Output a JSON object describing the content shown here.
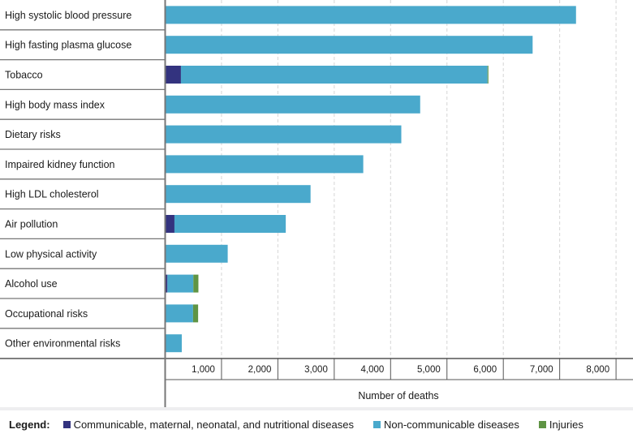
{
  "chart_data": {
    "type": "bar",
    "orientation": "horizontal",
    "stacked": true,
    "title": "",
    "xlabel": "Number of deaths",
    "ylabel": "",
    "xlim": [
      0,
      8300
    ],
    "xticks": [
      1000,
      2000,
      3000,
      4000,
      5000,
      6000,
      7000,
      8000
    ],
    "xtick_labels": [
      "1,000",
      "2,000",
      "3,000",
      "4,000",
      "5,000",
      "6,000",
      "7,000",
      "8,000"
    ],
    "grid": "vertical dashed",
    "categories": [
      "High systolic blood pressure",
      "High fasting plasma glucose",
      "Tobacco",
      "High body mass index",
      "Dietary risks",
      "Impaired kidney function",
      "High LDL cholesterol",
      "Air pollution",
      "Low physical activity",
      "Alcohol use",
      "Occupational risks",
      "Other environmental risks"
    ],
    "series": [
      {
        "name": "Communicable, maternal, neonatal, and nutritional diseases",
        "color": "#33337f",
        "values": [
          0,
          0,
          280,
          0,
          0,
          0,
          0,
          165,
          0,
          40,
          0,
          0
        ]
      },
      {
        "name": "Non-communicable diseases",
        "color": "#4aa9cc",
        "values": [
          7290,
          6520,
          5440,
          4525,
          4190,
          3515,
          2580,
          1975,
          1110,
          460,
          495,
          295
        ]
      },
      {
        "name": "Injuries",
        "color": "#5f9444",
        "values": [
          0,
          0,
          15,
          0,
          0,
          0,
          0,
          0,
          0,
          90,
          90,
          0
        ]
      }
    ],
    "legend_title": "Legend:",
    "legend_position": "bottom"
  }
}
